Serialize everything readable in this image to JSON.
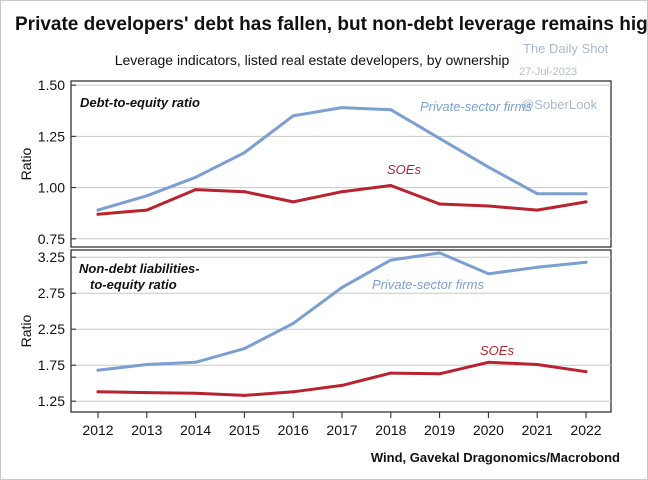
{
  "chart_data": {
    "type": "line",
    "title": "Private developers' debt has fallen, but non-debt leverage remains high",
    "subtitle": "Leverage indicators, listed real estate developers, by ownership",
    "source": "Wind, Gavekal Dragonomics/Macrobond",
    "watermark": {
      "brand": "The Daily Shot",
      "date": "27-Jul-2023",
      "handle": "@SoberLook"
    },
    "xlabels": [
      "2012",
      "2013",
      "2014",
      "2015",
      "2016",
      "2017",
      "2018",
      "2019",
      "2020",
      "2021",
      "2022"
    ],
    "colors": {
      "private": "#7b9fd0",
      "soe": "#b8232f"
    },
    "panels": [
      {
        "id": "top",
        "title": "Debt-to-equity ratio",
        "ylabel": "Ratio",
        "ylim": [
          0.71,
          1.52
        ],
        "yticks": [
          0.75,
          1.0,
          1.25,
          1.5
        ],
        "ytick_labels": [
          "0.75",
          "1.00",
          "1.25",
          "1.50"
        ],
        "series": [
          {
            "name": "Private-sector firms",
            "key": "private",
            "x": [
              2012,
              2013,
              2014,
              2015,
              2016,
              2017,
              2018,
              2019,
              2020,
              2021,
              2022
            ],
            "values": [
              0.89,
              0.96,
              1.05,
              1.17,
              1.35,
              1.39,
              1.38,
              1.24,
              1.1,
              0.97,
              0.97
            ]
          },
          {
            "name": "SOEs",
            "key": "soe",
            "x": [
              2012,
              2013,
              2014,
              2015,
              2016,
              2017,
              2018,
              2019,
              2020,
              2021,
              2022
            ],
            "values": [
              0.87,
              0.89,
              0.99,
              0.98,
              0.93,
              0.98,
              1.01,
              0.92,
              0.91,
              0.89,
              0.93
            ]
          }
        ]
      },
      {
        "id": "bottom",
        "title": "Non-debt liabilities-to-equity ratio",
        "title_lines": [
          "Non-debt liabilities-",
          "to-equity ratio"
        ],
        "ylabel": "Ratio",
        "ylim": [
          1.1,
          3.35
        ],
        "yticks": [
          1.25,
          1.75,
          2.25,
          2.75,
          3.25
        ],
        "ytick_labels": [
          "1.25",
          "1.75",
          "2.25",
          "2.75",
          "3.25"
        ],
        "series": [
          {
            "name": "Private-sector firms",
            "key": "private",
            "x": [
              2012,
              2013,
              2014,
              2015,
              2016,
              2017,
              2018,
              2019,
              2020,
              2021,
              2022
            ],
            "values": [
              1.68,
              1.76,
              1.79,
              1.98,
              2.33,
              2.83,
              3.21,
              3.31,
              3.02,
              3.11,
              3.18
            ]
          },
          {
            "name": "SOEs",
            "key": "soe",
            "x": [
              2012,
              2013,
              2014,
              2015,
              2016,
              2017,
              2018,
              2019,
              2020,
              2021,
              2022
            ],
            "values": [
              1.38,
              1.37,
              1.36,
              1.33,
              1.38,
              1.47,
              1.64,
              1.63,
              1.79,
              1.76,
              1.66
            ]
          }
        ]
      }
    ]
  }
}
